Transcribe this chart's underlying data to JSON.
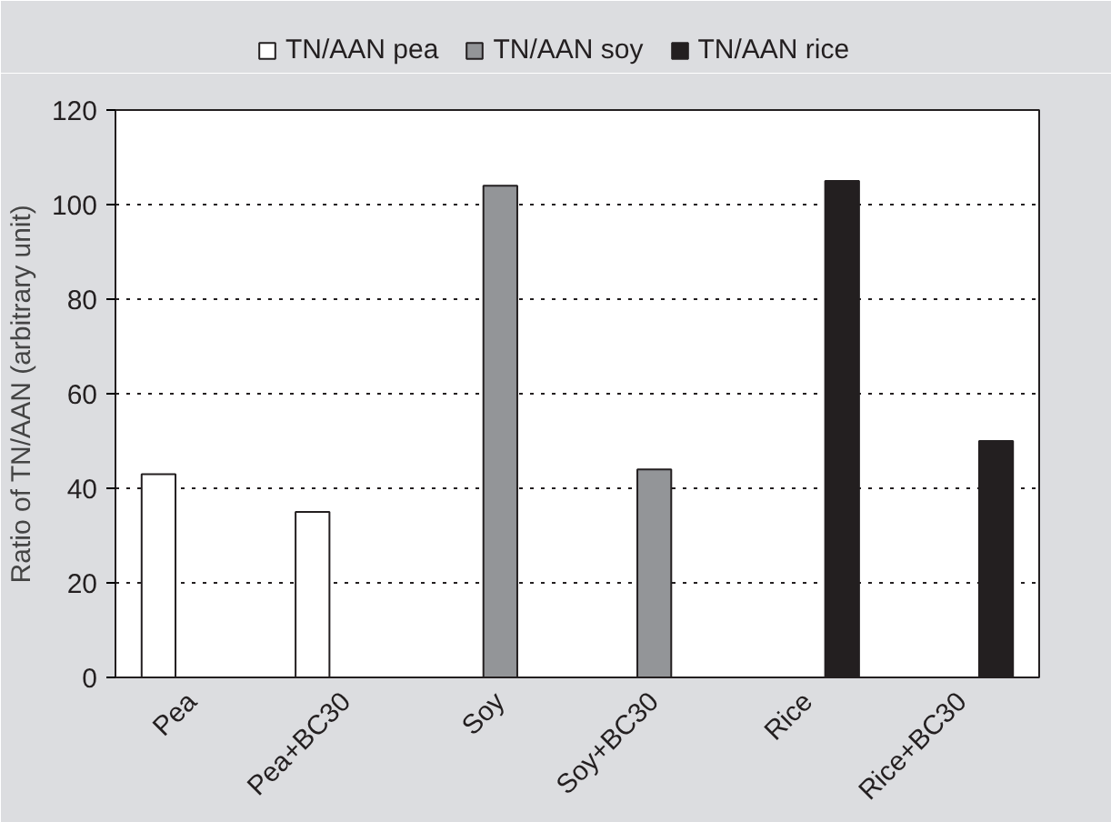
{
  "chart_data": {
    "type": "bar",
    "ylabel": "Ratio of TN/AAN (arbitrary unit)",
    "categories": [
      "Pea",
      "Pea+BC30",
      "Soy",
      "Soy+BC30",
      "Rice",
      "Rice+BC30"
    ],
    "series": [
      {
        "name": "TN/AAN pea",
        "color": "#ffffff",
        "values": [
          43,
          35,
          null,
          null,
          null,
          null
        ]
      },
      {
        "name": "TN/AAN soy",
        "color": "#939598",
        "values": [
          null,
          null,
          104,
          44,
          null,
          null
        ]
      },
      {
        "name": "TN/AAN rice",
        "color": "#231f20",
        "values": [
          null,
          null,
          null,
          null,
          105,
          50
        ]
      }
    ],
    "ylim": [
      0,
      120
    ],
    "yticks": [
      0,
      20,
      40,
      60,
      80,
      100,
      120
    ],
    "grid": "y",
    "legend": "top"
  }
}
